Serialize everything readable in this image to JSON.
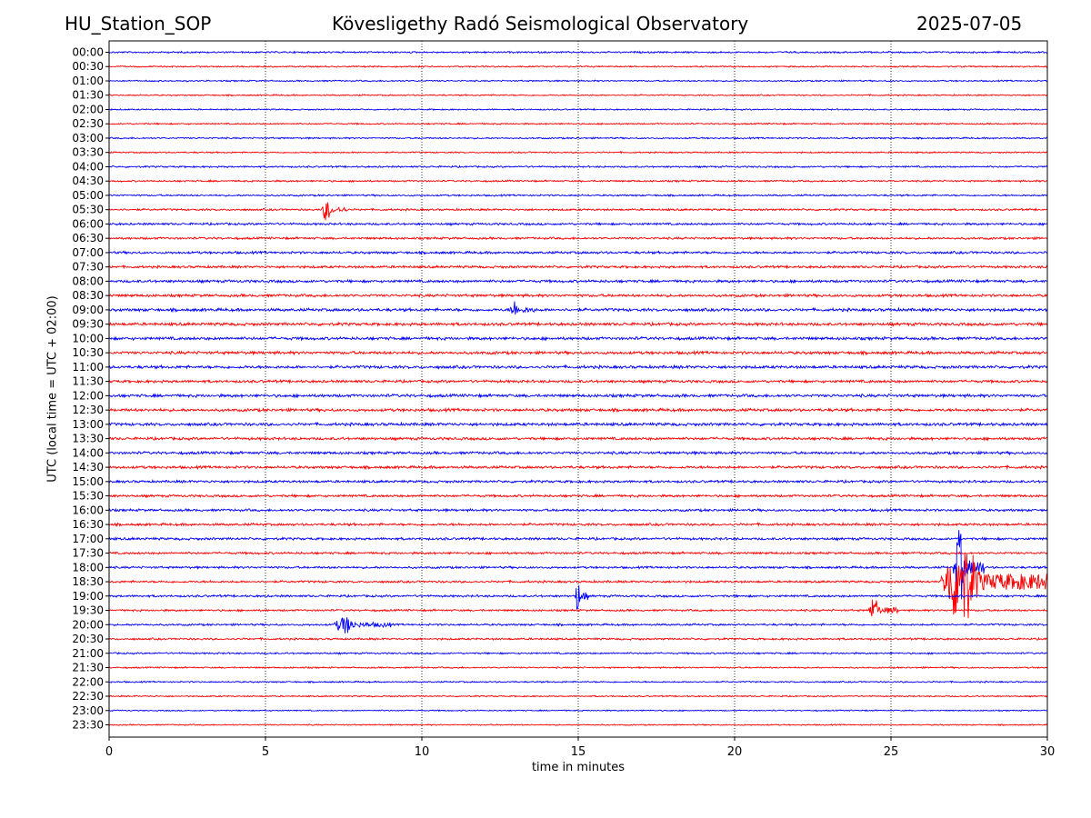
{
  "header": {
    "station": "HU_Station_SOP",
    "observatory": "Kövesligethy Radó Seismological Observatory",
    "date": "2025-07-05"
  },
  "chart_data": {
    "type": "line",
    "title": "Kövesligethy Radó Seismological Observatory",
    "xlabel": "time in minutes",
    "ylabel": "UTC (local time = UTC + 02:00)",
    "xlim": [
      0,
      30
    ],
    "xticks": [
      0,
      5,
      10,
      15,
      20,
      25,
      30
    ],
    "vertical_grid_minutes": [
      5,
      10,
      15,
      20,
      25
    ],
    "trace_rows": [
      "00:00",
      "00:30",
      "01:00",
      "01:30",
      "02:00",
      "02:30",
      "03:00",
      "03:30",
      "04:00",
      "04:30",
      "05:00",
      "05:30",
      "06:00",
      "06:30",
      "07:00",
      "07:30",
      "08:00",
      "08:30",
      "09:00",
      "09:30",
      "10:00",
      "10:30",
      "11:00",
      "11:30",
      "12:00",
      "12:30",
      "13:00",
      "13:30",
      "14:00",
      "14:30",
      "15:00",
      "15:30",
      "16:00",
      "16:30",
      "17:00",
      "17:30",
      "18:00",
      "18:30",
      "19:00",
      "19:30",
      "20:00",
      "20:30",
      "21:00",
      "21:30",
      "22:00",
      "22:30",
      "23:00",
      "23:30"
    ],
    "colors": {
      "even_rows": "#0000ff",
      "odd_rows": "#ff0000"
    },
    "noise_levels": [
      0.35,
      0.3,
      0.3,
      0.28,
      0.28,
      0.3,
      0.32,
      0.3,
      0.35,
      0.35,
      0.35,
      0.4,
      0.45,
      0.45,
      0.5,
      0.5,
      0.55,
      0.55,
      0.6,
      0.6,
      0.6,
      0.6,
      0.6,
      0.55,
      0.6,
      0.6,
      0.6,
      0.55,
      0.55,
      0.55,
      0.5,
      0.5,
      0.5,
      0.5,
      0.5,
      0.45,
      0.45,
      0.45,
      0.45,
      0.4,
      0.4,
      0.4,
      0.35,
      0.3,
      0.3,
      0.28,
      0.25,
      0.25
    ],
    "events": [
      {
        "row": "05:30",
        "start_min": 6.8,
        "end_min": 7.6,
        "amplitude": 1.2
      },
      {
        "row": "09:00",
        "start_min": 12.8,
        "end_min": 13.6,
        "amplitude": 0.9
      },
      {
        "row": "18:00",
        "start_min": 27.0,
        "end_min": 28.0,
        "amplitude": 4.0
      },
      {
        "row": "18:30",
        "start_min": 26.6,
        "end_min": 30.0,
        "amplitude": 4.5
      },
      {
        "row": "19:00",
        "start_min": 14.9,
        "end_min": 15.3,
        "amplitude": 2.0
      },
      {
        "row": "19:30",
        "start_min": 24.3,
        "end_min": 25.2,
        "amplitude": 1.4
      },
      {
        "row": "20:00",
        "start_min": 7.2,
        "end_min": 9.0,
        "amplitude": 0.9
      }
    ]
  }
}
